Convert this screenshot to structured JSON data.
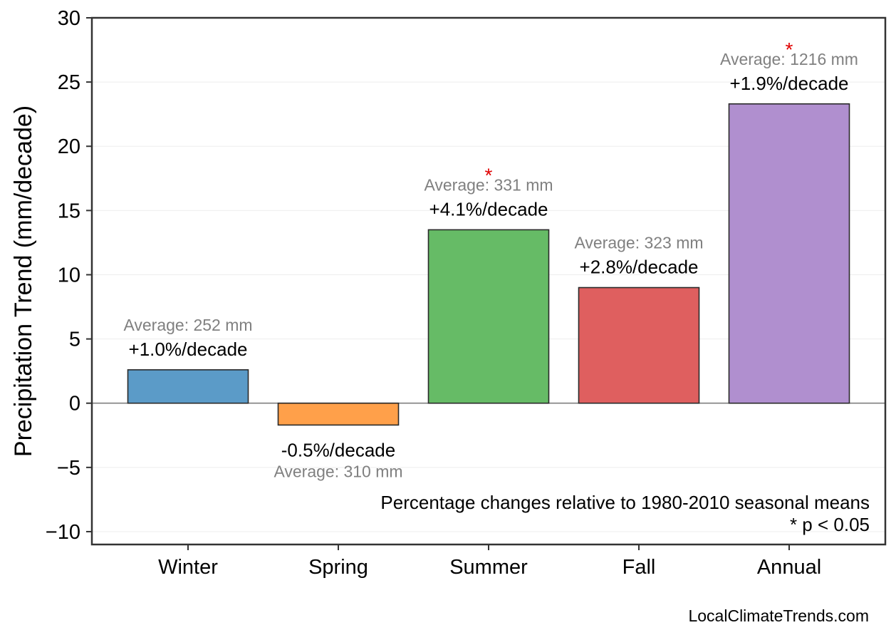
{
  "chart_data": {
    "type": "bar",
    "categories": [
      "Winter",
      "Spring",
      "Summer",
      "Fall",
      "Annual"
    ],
    "values": [
      2.6,
      -1.7,
      13.5,
      9.0,
      23.3
    ],
    "colors": [
      "#5b9bc8",
      "#ffa04a",
      "#66bb66",
      "#df5f5f",
      "#b08fcf"
    ],
    "percent_labels": [
      "+1.0%/decade",
      "-0.5%/decade",
      "+4.1%/decade",
      "+2.8%/decade",
      "+1.9%/decade"
    ],
    "average_labels": [
      "Average: 252 mm",
      "Average: 310 mm",
      "Average: 331 mm",
      "Average: 323 mm",
      "Average: 1216 mm"
    ],
    "significant": [
      false,
      false,
      true,
      false,
      true
    ],
    "significance_marker": "*",
    "ylabel": "Precipitation Trend (mm/decade)",
    "xlabel": "",
    "ylim": [
      -11,
      30
    ],
    "yticks": [
      -10,
      -5,
      0,
      5,
      10,
      15,
      20,
      25,
      30
    ],
    "ytick_labels": [
      "−10",
      "−5",
      "0",
      "5",
      "10",
      "15",
      "20",
      "25",
      "30"
    ],
    "grid": "horizontal",
    "annotation_line1": "Percentage changes relative to 1980-2010 seasonal means",
    "annotation_line2": "* p < 0.05"
  },
  "footer": {
    "source": "LocalClimateTrends.com"
  }
}
